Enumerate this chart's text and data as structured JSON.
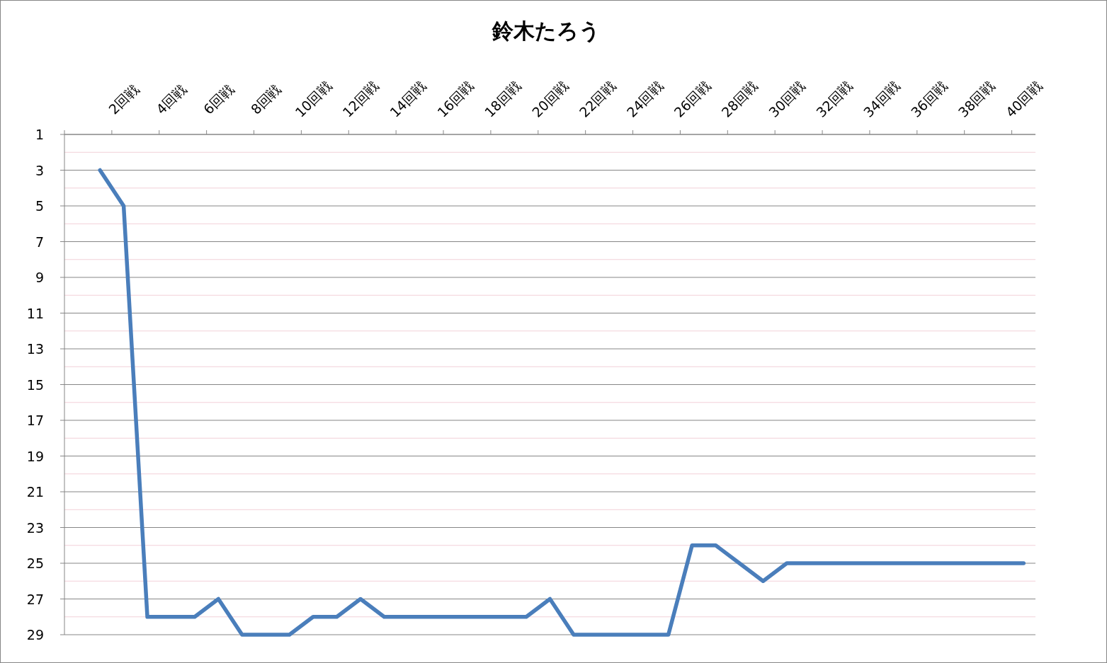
{
  "chart_data": {
    "type": "line",
    "title": "鈴木たろう",
    "categories": [
      null,
      null,
      "2回戦",
      null,
      "4回戦",
      null,
      "6回戦",
      null,
      "8回戦",
      null,
      "10回戦",
      null,
      "12回戦",
      null,
      "14回戦",
      null,
      "16回戦",
      null,
      "18回戦",
      null,
      "20回戦",
      null,
      "22回戦",
      null,
      "24回戦",
      null,
      "26回戦",
      null,
      "28回戦",
      null,
      "30回戦",
      null,
      "32回戦",
      null,
      "34回戦",
      null,
      "36回戦",
      null,
      "38回戦",
      null,
      "40回戦"
    ],
    "series": [
      {
        "color": "#4a7ebb",
        "values": [
          null,
          3,
          5,
          28,
          28,
          28,
          27,
          29,
          29,
          29,
          28,
          28,
          27,
          28,
          28,
          28,
          28,
          28,
          28,
          28,
          27,
          29,
          29,
          29,
          29,
          29,
          24,
          24,
          25,
          26,
          25,
          25,
          25,
          25,
          25,
          25,
          25,
          25,
          25,
          25,
          25
        ]
      }
    ],
    "ylim": [
      29,
      1
    ],
    "yticks": [
      1,
      {
        "value": 2,
        "label": null
      },
      3,
      {
        "value": 4,
        "label": null
      },
      5,
      {
        "value": 6,
        "label": null
      },
      7,
      {
        "value": 8,
        "label": null
      },
      9,
      {
        "value": 10,
        "label": null
      },
      11,
      {
        "value": 12,
        "label": null
      },
      13,
      {
        "value": 14,
        "label": null
      },
      15,
      {
        "value": 16,
        "label": null
      },
      17,
      {
        "value": 18,
        "label": null
      },
      19,
      {
        "value": 20,
        "label": null
      },
      21,
      {
        "value": 22,
        "label": null
      },
      23,
      {
        "value": 24,
        "label": null
      },
      25,
      {
        "value": 26,
        "label": null
      },
      27,
      {
        "value": 28,
        "label": null
      },
      29
    ],
    "grid": "y"
  }
}
